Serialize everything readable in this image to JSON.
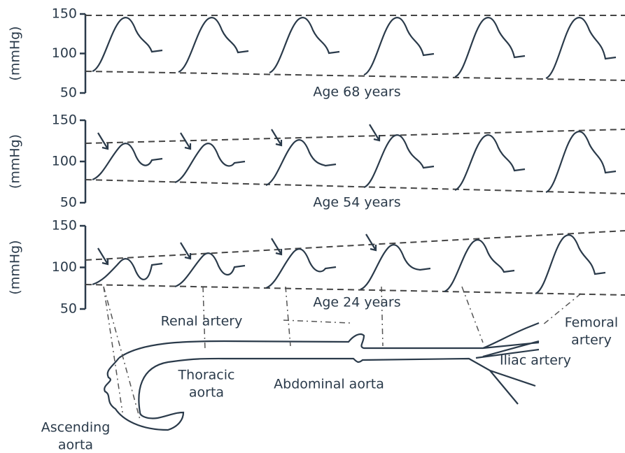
{
  "panels": [
    {
      "y_label": "(mmHg)",
      "yticks": [
        50,
        100,
        150
      ],
      "label": "Age 68 years"
    },
    {
      "y_label": "(mmHg)",
      "yticks": [
        50,
        100,
        150
      ],
      "label": "Age 54 years"
    },
    {
      "y_label": "(mmHg)",
      "yticks": [
        50,
        100,
        150
      ],
      "label": "Age 24 years"
    }
  ],
  "anatomy": [
    {
      "lines": [
        "Renal artery"
      ]
    },
    {
      "lines": [
        "Thoracic",
        "aorta"
      ]
    },
    {
      "lines": [
        "Abdominal aorta"
      ]
    },
    {
      "lines": [
        "Iliac artery"
      ]
    },
    {
      "lines": [
        "Femoral",
        "artery"
      ]
    },
    {
      "lines": [
        "Ascending",
        "aorta"
      ]
    }
  ]
}
